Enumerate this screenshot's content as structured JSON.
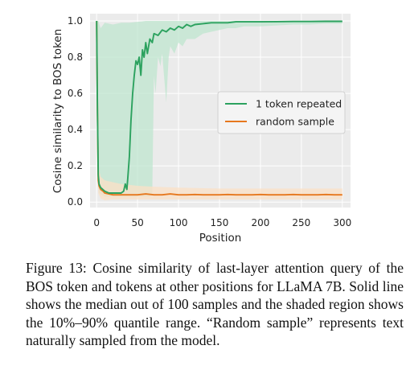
{
  "chart_data": {
    "type": "line",
    "xlabel": "Position",
    "ylabel": "Cosine similarity to BOS token",
    "xlim": [
      -8,
      310
    ],
    "ylim": [
      -0.03,
      1.04
    ],
    "x_ticks": [
      0,
      50,
      100,
      150,
      200,
      250,
      300
    ],
    "x_tick_labels": [
      "0",
      "50",
      "100",
      "150",
      "200",
      "250",
      "300"
    ],
    "y_ticks": [
      0.0,
      0.2,
      0.4,
      0.6,
      0.8,
      1.0
    ],
    "y_tick_labels": [
      "0.0",
      "0.2",
      "0.4",
      "0.6",
      "0.8",
      "1.0"
    ],
    "grid": true,
    "legend_position": "center-right",
    "series": [
      {
        "name": "1 token repeated",
        "color": "#2ca25f",
        "band_color": "#bfe6cf",
        "median": [
          [
            0,
            1.0
          ],
          [
            1,
            0.5
          ],
          [
            2,
            0.15
          ],
          [
            3,
            0.1
          ],
          [
            5,
            0.08
          ],
          [
            10,
            0.06
          ],
          [
            15,
            0.05
          ],
          [
            20,
            0.05
          ],
          [
            25,
            0.05
          ],
          [
            30,
            0.05
          ],
          [
            33,
            0.06
          ],
          [
            35,
            0.1
          ],
          [
            37,
            0.07
          ],
          [
            38,
            0.13
          ],
          [
            40,
            0.25
          ],
          [
            42,
            0.45
          ],
          [
            44,
            0.6
          ],
          [
            46,
            0.7
          ],
          [
            48,
            0.78
          ],
          [
            50,
            0.76
          ],
          [
            52,
            0.8
          ],
          [
            54,
            0.7
          ],
          [
            56,
            0.84
          ],
          [
            58,
            0.8
          ],
          [
            60,
            0.88
          ],
          [
            62,
            0.82
          ],
          [
            65,
            0.9
          ],
          [
            68,
            0.88
          ],
          [
            70,
            0.93
          ],
          [
            75,
            0.92
          ],
          [
            80,
            0.95
          ],
          [
            85,
            0.94
          ],
          [
            90,
            0.96
          ],
          [
            95,
            0.95
          ],
          [
            100,
            0.97
          ],
          [
            105,
            0.96
          ],
          [
            110,
            0.98
          ],
          [
            115,
            0.97
          ],
          [
            120,
            0.98
          ],
          [
            130,
            0.985
          ],
          [
            140,
            0.99
          ],
          [
            150,
            0.99
          ],
          [
            160,
            0.99
          ],
          [
            170,
            0.995
          ],
          [
            180,
            0.995
          ],
          [
            200,
            0.995
          ],
          [
            220,
            0.996
          ],
          [
            240,
            0.997
          ],
          [
            260,
            0.997
          ],
          [
            280,
            0.998
          ],
          [
            300,
            0.998
          ]
        ],
        "q10": [
          [
            0,
            1.0
          ],
          [
            1,
            0.3
          ],
          [
            2,
            0.08
          ],
          [
            3,
            0.05
          ],
          [
            10,
            0.03
          ],
          [
            20,
            0.03
          ],
          [
            30,
            0.03
          ],
          [
            40,
            0.03
          ],
          [
            50,
            0.03
          ],
          [
            60,
            0.03
          ],
          [
            65,
            0.03
          ],
          [
            68,
            0.05
          ],
          [
            70,
            0.7
          ],
          [
            72,
            0.6
          ],
          [
            75,
            0.8
          ],
          [
            78,
            0.75
          ],
          [
            80,
            0.82
          ],
          [
            85,
            0.55
          ],
          [
            88,
            0.8
          ],
          [
            90,
            0.86
          ],
          [
            95,
            0.82
          ],
          [
            100,
            0.88
          ],
          [
            105,
            0.86
          ],
          [
            110,
            0.9
          ],
          [
            120,
            0.9
          ],
          [
            130,
            0.93
          ],
          [
            140,
            0.94
          ],
          [
            150,
            0.95
          ],
          [
            160,
            0.96
          ],
          [
            170,
            0.96
          ],
          [
            180,
            0.97
          ],
          [
            200,
            0.97
          ],
          [
            220,
            0.975
          ],
          [
            240,
            0.98
          ],
          [
            260,
            0.98
          ],
          [
            280,
            0.985
          ],
          [
            300,
            0.985
          ]
        ],
        "q90": [
          [
            0,
            1.0
          ],
          [
            2,
            1.0
          ],
          [
            5,
            0.96
          ],
          [
            10,
            0.99
          ],
          [
            20,
            0.98
          ],
          [
            30,
            0.99
          ],
          [
            40,
            0.99
          ],
          [
            60,
            1.0
          ],
          [
            80,
            1.0
          ],
          [
            300,
            1.0
          ]
        ]
      },
      {
        "name": "random sample",
        "color": "#e6781e",
        "band_color": "#fbe0c6",
        "median": [
          [
            0,
            1.0
          ],
          [
            1,
            0.5
          ],
          [
            2,
            0.12
          ],
          [
            3,
            0.09
          ],
          [
            5,
            0.07
          ],
          [
            8,
            0.06
          ],
          [
            10,
            0.05
          ],
          [
            15,
            0.045
          ],
          [
            20,
            0.04
          ],
          [
            30,
            0.04
          ],
          [
            40,
            0.04
          ],
          [
            50,
            0.04
          ],
          [
            60,
            0.045
          ],
          [
            70,
            0.04
          ],
          [
            80,
            0.04
          ],
          [
            90,
            0.045
          ],
          [
            100,
            0.04
          ],
          [
            110,
            0.04
          ],
          [
            120,
            0.042
          ],
          [
            130,
            0.04
          ],
          [
            140,
            0.04
          ],
          [
            150,
            0.04
          ],
          [
            160,
            0.042
          ],
          [
            170,
            0.04
          ],
          [
            180,
            0.04
          ],
          [
            190,
            0.04
          ],
          [
            200,
            0.042
          ],
          [
            210,
            0.04
          ],
          [
            220,
            0.04
          ],
          [
            230,
            0.04
          ],
          [
            240,
            0.042
          ],
          [
            250,
            0.04
          ],
          [
            260,
            0.04
          ],
          [
            270,
            0.04
          ],
          [
            280,
            0.042
          ],
          [
            290,
            0.04
          ],
          [
            300,
            0.04
          ]
        ],
        "q10": [
          [
            0,
            1.0
          ],
          [
            1,
            0.3
          ],
          [
            2,
            0.05
          ],
          [
            5,
            0.02
          ],
          [
            10,
            0.01
          ],
          [
            20,
            0.015
          ],
          [
            40,
            0.015
          ],
          [
            60,
            0.015
          ],
          [
            100,
            0.015
          ],
          [
            150,
            0.015
          ],
          [
            200,
            0.015
          ],
          [
            250,
            0.015
          ],
          [
            300,
            0.015
          ]
        ],
        "q90": [
          [
            0,
            1.0
          ],
          [
            1,
            0.8
          ],
          [
            2,
            0.3
          ],
          [
            3,
            0.18
          ],
          [
            5,
            0.14
          ],
          [
            10,
            0.12
          ],
          [
            20,
            0.11
          ],
          [
            30,
            0.1
          ],
          [
            50,
            0.09
          ],
          [
            70,
            0.085
          ],
          [
            100,
            0.08
          ],
          [
            150,
            0.075
          ],
          [
            200,
            0.075
          ],
          [
            250,
            0.075
          ],
          [
            300,
            0.075
          ]
        ]
      }
    ]
  },
  "caption": "Figure 13: Cosine similarity of last-layer attention query of the BOS token and tokens at other positions for LLaMA 7B. Solid line shows the median out of 100 samples and the shaded region shows the 10%–90% quantile range. “Random sample” represents text naturally sampled from the model."
}
